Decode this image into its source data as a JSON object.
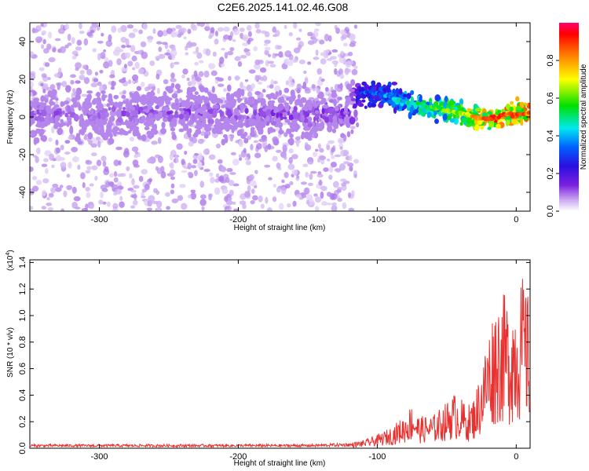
{
  "title": "C2E6.2025.141.02.46.G08",
  "colors": {
    "spectrogram_low": "#c9a8f0",
    "spectrogram_mid": "#7a1fe0",
    "snr_line": "#e8302e",
    "axis": "#000000"
  },
  "chart_data": [
    {
      "type": "heatmap",
      "xlabel": "Height of straight line (km)",
      "ylabel": "Frequency (Hz)",
      "xlim": [
        -350,
        10
      ],
      "ylim": [
        -50,
        50
      ],
      "xticks": [
        -300,
        -200,
        -100,
        0
      ],
      "xtick_labels": [
        "-300",
        "-200",
        "-100",
        "0"
      ],
      "yticks": [
        -40,
        -20,
        0,
        20,
        40
      ],
      "ytick_labels": [
        "-40",
        "-20",
        "0",
        "20",
        "40"
      ],
      "colorbar": {
        "label": "Normalized spectral amplitude",
        "range": [
          0,
          1
        ],
        "ticks": [
          0.0,
          0.2,
          0.4,
          0.6,
          0.8
        ],
        "tick_labels": [
          "0.0",
          "0.2",
          "0.4",
          "0.6",
          "0.8"
        ],
        "colormap": "purple-blue-cyan-green-yellow-red"
      },
      "ridge": [
        {
          "x": -350,
          "y": 2,
          "amp": 0.12
        },
        {
          "x": -300,
          "y": 1,
          "amp": 0.12
        },
        {
          "x": -250,
          "y": 3,
          "amp": 0.13
        },
        {
          "x": -200,
          "y": 2,
          "amp": 0.13
        },
        {
          "x": -150,
          "y": 1,
          "amp": 0.14
        },
        {
          "x": -120,
          "y": 3,
          "amp": 0.16
        },
        {
          "x": -110,
          "y": 13,
          "amp": 0.3
        },
        {
          "x": -95,
          "y": 12,
          "amp": 0.35
        },
        {
          "x": -80,
          "y": 8,
          "amp": 0.45
        },
        {
          "x": -60,
          "y": 5,
          "amp": 0.55
        },
        {
          "x": -40,
          "y": 2,
          "amp": 0.65
        },
        {
          "x": -25,
          "y": -1,
          "amp": 0.85
        },
        {
          "x": -15,
          "y": -1,
          "amp": 0.9
        },
        {
          "x": -10,
          "y": 1,
          "amp": 0.85
        },
        {
          "x": 10,
          "y": 2,
          "amp": 0.85
        }
      ]
    },
    {
      "type": "line",
      "xlabel": "Height of straight line (km)",
      "ylabel": "SNR (10 * v/v)",
      "yscale_note": "(x10",
      "yscale_exp": "4",
      "yscale_close": ")",
      "xlim": [
        -350,
        10
      ],
      "ylim": [
        0,
        1.42
      ],
      "xticks": [
        -300,
        -200,
        -100,
        0
      ],
      "xtick_labels": [
        "-300",
        "-200",
        "-100",
        "0"
      ],
      "yticks": [
        0.0,
        0.2,
        0.4,
        0.6,
        0.8,
        1.0,
        1.2,
        1.4
      ],
      "ytick_labels": [
        "0.0",
        "0.2",
        "0.4",
        "0.6",
        "0.8",
        "1.0",
        "1.2",
        "1.4"
      ],
      "series": [
        {
          "color": "#e8302e",
          "envelope_x": [
            -350,
            -300,
            -200,
            -150,
            -120,
            -110,
            -100,
            -90,
            -80,
            -75,
            -70,
            -60,
            -50,
            -45,
            -40,
            -35,
            -30,
            -25,
            -20,
            -15,
            -10,
            -5,
            0,
            5,
            10
          ],
          "envelope_y": [
            0.03,
            0.03,
            0.03,
            0.03,
            0.04,
            0.06,
            0.1,
            0.16,
            0.25,
            0.34,
            0.24,
            0.25,
            0.35,
            0.42,
            0.38,
            0.32,
            0.4,
            0.62,
            0.9,
            1.12,
            1.18,
            1.12,
            1.2,
            1.3,
            1.1
          ]
        }
      ]
    }
  ]
}
